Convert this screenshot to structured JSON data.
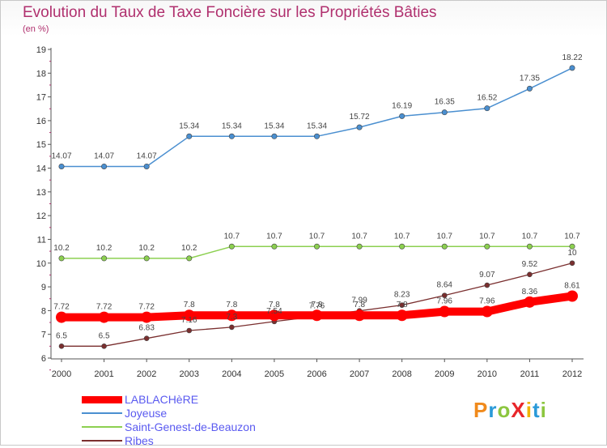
{
  "title": "Evolution du Taux de Taxe Foncière sur les Propriétés Bâties",
  "unit": "(en %)",
  "logo": {
    "text": "ProXiti",
    "colors": [
      "#f08a1c",
      "#2a9ad8",
      "#8cc63f",
      "#e8262a",
      "#f0b400",
      "#2a9ad8",
      "#8cc63f"
    ]
  },
  "chart_data": {
    "type": "line",
    "categories": [
      "2000",
      "2001",
      "2002",
      "2003",
      "2004",
      "2005",
      "2006",
      "2007",
      "2008",
      "2009",
      "2010",
      "2011",
      "2012"
    ],
    "ylim": [
      6,
      19
    ],
    "yticks": [
      "6",
      "7",
      "8",
      "9",
      "10",
      "11",
      "12",
      "13",
      "14",
      "15",
      "16",
      "17",
      "18",
      "19"
    ],
    "grid": false,
    "legend_position": "bottom-left",
    "series": [
      {
        "name": "LABLACHèRE",
        "color": "#ff0000",
        "values": [
          7.72,
          7.72,
          7.72,
          7.8,
          7.8,
          7.8,
          7.8,
          7.8,
          7.8,
          7.96,
          7.96,
          8.36,
          8.61
        ],
        "labels": [
          "7.72",
          "7.72",
          "7.72",
          "7.8",
          "7.8",
          "7.8",
          "7.8",
          "7.8",
          "7.8",
          "7.96",
          "7.96",
          "8.36",
          "8.61"
        ]
      },
      {
        "name": "Joyeuse",
        "color": "#4a8fd0",
        "values": [
          14.07,
          14.07,
          14.07,
          15.34,
          15.34,
          15.34,
          15.34,
          15.72,
          16.19,
          16.35,
          16.52,
          17.35,
          18.22
        ],
        "labels": [
          "14.07",
          "14.07",
          "14.07",
          "15.34",
          "15.34",
          "15.34",
          "15.34",
          "15.72",
          "16.19",
          "16.35",
          "16.52",
          "17.35",
          "18.22"
        ]
      },
      {
        "name": "Saint-Genest-de-Beauzon",
        "color": "#8cd050",
        "values": [
          10.2,
          10.2,
          10.2,
          10.2,
          10.7,
          10.7,
          10.7,
          10.7,
          10.7,
          10.7,
          10.7,
          10.7,
          10.7
        ],
        "labels": [
          "10.2",
          "10.2",
          "10.2",
          "10.2",
          "10.7",
          "10.7",
          "10.7",
          "10.7",
          "10.7",
          "10.7",
          "10.7",
          "10.7",
          "10.7"
        ]
      },
      {
        "name": "Ribes",
        "color": "#7a2f2f",
        "values": [
          6.5,
          6.5,
          6.83,
          7.16,
          7.3,
          7.54,
          7.76,
          7.99,
          8.23,
          8.64,
          9.07,
          9.52,
          10
        ],
        "labels": [
          "6.5",
          "6.5",
          "6.83",
          "7.16",
          "7.3",
          "7.54",
          "7.76",
          "7.99",
          "8.23",
          "8.64",
          "9.07",
          "9.52",
          "10"
        ]
      }
    ]
  }
}
